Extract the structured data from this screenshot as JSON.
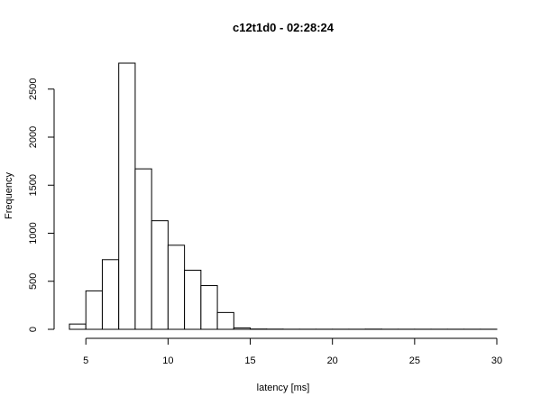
{
  "chart_data": {
    "type": "bar",
    "title": "c12t1d0 - 02:28:24",
    "xlabel": "latency [ms]",
    "ylabel": "Frequency",
    "bin_width": 1,
    "bins_start": [
      4,
      5,
      6,
      7,
      8,
      9,
      10,
      11,
      12,
      13,
      14,
      15,
      16,
      17,
      18,
      19,
      20,
      21,
      22,
      23,
      24,
      25,
      26,
      27,
      28,
      29
    ],
    "values": [
      55,
      400,
      725,
      2770,
      1670,
      1130,
      875,
      615,
      455,
      175,
      15,
      3,
      2,
      1,
      1,
      1,
      1,
      1,
      2,
      1,
      1,
      1,
      1,
      1,
      1,
      1
    ],
    "xlim": [
      4,
      30
    ],
    "ylim": [
      0,
      2770
    ],
    "x_ticks": [
      5,
      10,
      15,
      20,
      25,
      30
    ],
    "y_ticks": [
      0,
      500,
      1000,
      1500,
      2000,
      2500
    ],
    "grid": false
  }
}
